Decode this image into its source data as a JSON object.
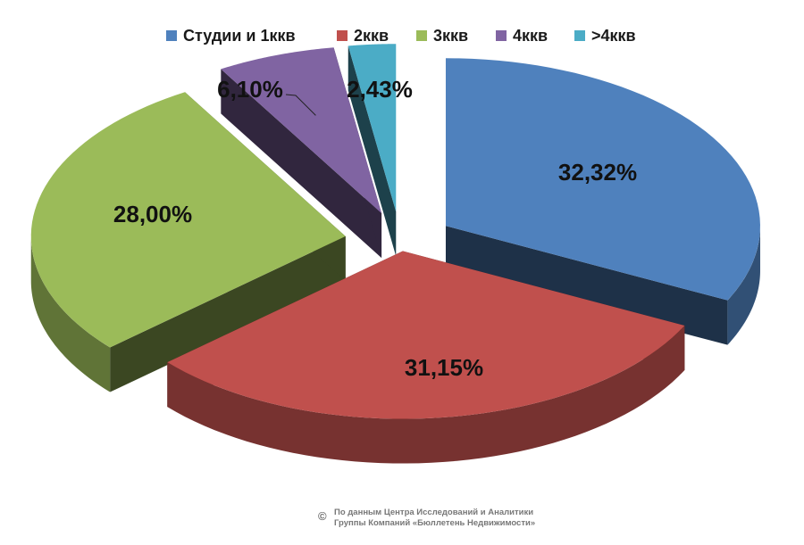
{
  "chart_data": {
    "type": "pie",
    "style": "3d-exploded",
    "legend_position": "top",
    "categories": [
      "Студии и 1ккв",
      "2ккв",
      "3ккв",
      "4ккв",
      ">4ккв"
    ],
    "values": [
      32.32,
      31.15,
      28.0,
      6.1,
      2.43
    ],
    "data_labels": [
      "32,32%",
      "31,15%",
      "28,00%",
      "6,10%",
      "2,43%"
    ],
    "colors": [
      "#4F81BD",
      "#C0504D",
      "#9BBB59",
      "#8064A2",
      "#4BACC6"
    ]
  },
  "footer": {
    "copyright_symbol": "©",
    "line1": "По данным Центра Исследований и Аналитики",
    "line2": "Группы Компаний «Бюллетень Недвижимости»"
  }
}
